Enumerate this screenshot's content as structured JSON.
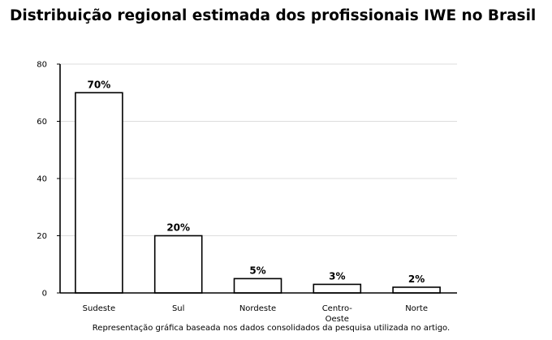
{
  "chart_data": {
    "type": "bar",
    "title": "Distribuição regional estimada dos profissionais IWE no Brasil",
    "categories": [
      "Sudeste",
      "Sul",
      "Nordeste",
      "Centro-Oeste",
      "Norte"
    ],
    "category_label_lines": [
      [
        "Sudeste"
      ],
      [
        "Sul"
      ],
      [
        "Nordeste"
      ],
      [
        "Centro-",
        "Oeste"
      ],
      [
        "Norte"
      ]
    ],
    "values": [
      70,
      20,
      5,
      3,
      2
    ],
    "data_labels": [
      "70%",
      "20%",
      "5%",
      "3%",
      "2%"
    ],
    "ylim": [
      0,
      80
    ],
    "yticks": [
      0,
      20,
      40,
      60,
      80
    ],
    "xlabel": "",
    "ylabel": "",
    "grid": true,
    "legend": "none",
    "caption": "Representação gráfica baseada nos dados consolidados da pesquisa utilizada no artigo.",
    "colors": {
      "bar_fill": "#ffffff",
      "bar_stroke": "#000000",
      "grid": "#dddddd",
      "axis": "#000000"
    }
  }
}
